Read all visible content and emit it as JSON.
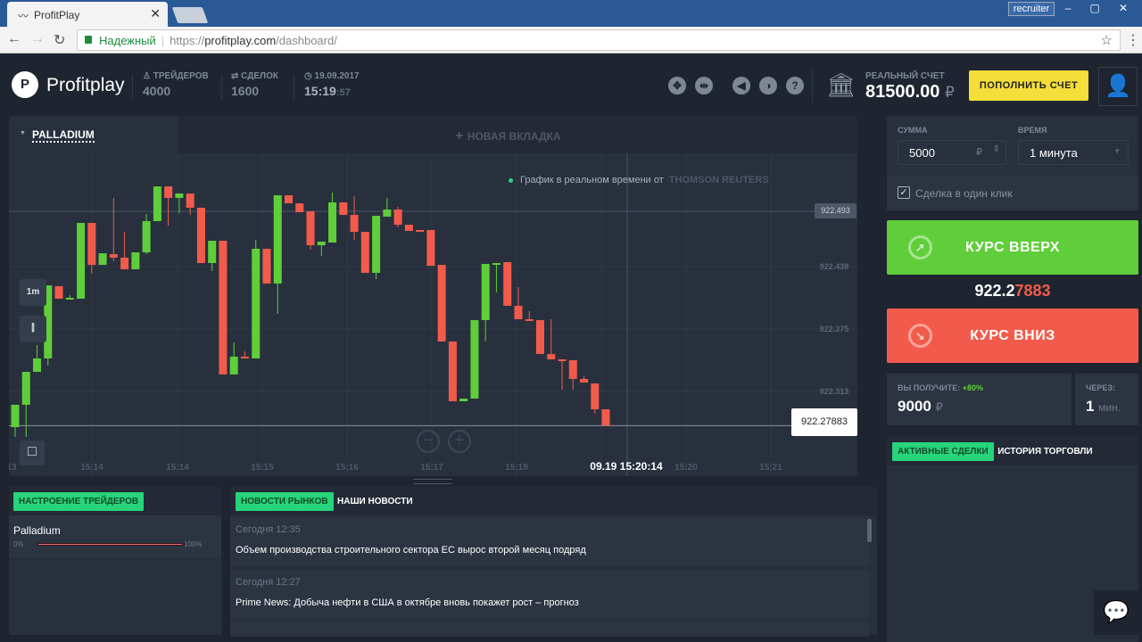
{
  "browser": {
    "tab_title": "ProfitPlay",
    "user": "recruiter",
    "secure_label": "Надежный",
    "url_scheme": "https://",
    "url_host": "profitplay.com",
    "url_path": "/dashboard/"
  },
  "header": {
    "logo": "Profitplay",
    "traders_label": "ТРЕЙДЕРОВ",
    "traders": "4000",
    "deals_label": "СДЕЛОК",
    "deals": "1600",
    "date": "19.09.2017",
    "time_hm": "15:19",
    "time_s": ":57",
    "account_label": "РЕАЛЬНЫЙ СЧЕТ",
    "balance": "81500.00",
    "currency": "₽",
    "deposit_button": "ПОПОЛНИТЬ СЧЕТ",
    "tool_icons": [
      "expand-icon",
      "split-icon",
      "sound-icon",
      "contrast-icon",
      "help-icon"
    ]
  },
  "chart_tabs": {
    "active": "PALLADIUM",
    "new": "НОВАЯ ВКЛАДКА"
  },
  "realtime": {
    "text": "График в реальном времени от",
    "provider": "THOMSON REUTERS"
  },
  "chart_data": {
    "type": "candlestick",
    "interval_label": "1m",
    "x_ticks": [
      "13",
      "15:14",
      "15:14",
      "15:15",
      "15:16",
      "15:17",
      "15:18",
      "15:20",
      "15:21"
    ],
    "y_ticks": [
      "922.438",
      "922.375",
      "922.313"
    ],
    "crosshair": {
      "price": "922.493",
      "time": "09.19 15:20:14"
    },
    "current_price": "922.27883",
    "colors": {
      "up": "#5fce3a",
      "down": "#f25b4b"
    },
    "candles_ohlc": [
      [
        922.2774,
        922.2997,
        922.2676,
        922.2997
      ],
      [
        922.2997,
        922.3326,
        922.2676,
        922.3326
      ],
      [
        922.3326,
        922.3594,
        922.3326,
        922.346
      ],
      [
        922.346,
        922.419,
        922.3389,
        922.419
      ],
      [
        922.4182,
        922.4182,
        922.4057,
        922.4057
      ],
      [
        922.4057,
        922.4092,
        922.4057,
        922.4066
      ],
      [
        922.4057,
        922.4814,
        922.4057,
        922.4814
      ],
      [
        922.4814,
        922.4814,
        922.4306,
        922.4395
      ],
      [
        922.4395,
        922.4511,
        922.4395,
        922.4511
      ],
      [
        922.4502,
        922.5064,
        922.4431,
        922.4467
      ],
      [
        922.4467,
        922.4725,
        922.4351,
        922.4351
      ],
      [
        922.4351,
        922.452,
        922.4351,
        922.452
      ],
      [
        922.452,
        922.4903,
        922.4502,
        922.4832
      ],
      [
        922.4832,
        922.5179,
        922.4832,
        922.5179
      ],
      [
        922.5179,
        922.5179,
        922.4787,
        922.5064
      ],
      [
        922.5064,
        922.5108,
        922.4912,
        922.5108
      ],
      [
        922.5108,
        922.5108,
        922.4894,
        922.4966
      ],
      [
        922.4966,
        922.4966,
        922.4413,
        922.4413
      ],
      [
        922.4413,
        922.4636,
        922.4333,
        922.4636
      ],
      [
        922.4636,
        922.4636,
        922.33,
        922.33
      ],
      [
        922.33,
        922.362,
        922.33,
        922.3478
      ],
      [
        922.3478,
        922.3531,
        922.346,
        922.346
      ],
      [
        922.346,
        922.4645,
        922.346,
        922.4556
      ],
      [
        922.4556,
        922.4556,
        922.4208,
        922.4208
      ],
      [
        922.4208,
        922.509,
        922.3905,
        922.509
      ],
      [
        922.509,
        922.509,
        922.501,
        922.501
      ],
      [
        922.501,
        922.501,
        922.4921,
        922.4921
      ],
      [
        922.493,
        922.493,
        922.4547,
        922.4591
      ],
      [
        922.4591,
        922.4627,
        922.4485,
        922.4627
      ],
      [
        922.4618,
        922.5117,
        922.4618,
        922.5019
      ],
      [
        922.5019,
        922.5019,
        922.4894,
        922.4894
      ],
      [
        922.4894,
        922.5081,
        922.4645,
        922.4725
      ],
      [
        922.4725,
        922.4725,
        922.4315,
        922.4315
      ],
      [
        922.4315,
        922.4885,
        922.4253,
        922.4885
      ],
      [
        922.4877,
        922.5064,
        922.4877,
        922.4948
      ],
      [
        922.4948,
        922.4975,
        922.477,
        922.4796
      ],
      [
        922.4796,
        922.4796,
        922.4734,
        922.4734
      ],
      [
        922.4743,
        922.4743,
        922.4734,
        922.4734
      ],
      [
        922.4743,
        922.4743,
        922.4386,
        922.4386
      ],
      [
        922.4395,
        922.4395,
        922.3629,
        922.3629
      ],
      [
        922.3629,
        922.3629,
        922.3032,
        922.3032
      ],
      [
        922.3032,
        922.3059,
        922.3032,
        922.3059
      ],
      [
        922.3059,
        922.3843,
        922.3059,
        922.3843
      ],
      [
        922.3843,
        922.4404,
        922.3629,
        922.4404
      ],
      [
        922.4404,
        922.4413,
        922.4119,
        922.4413
      ],
      [
        922.4422,
        922.4422,
        922.3986,
        922.3986
      ],
      [
        922.3986,
        922.4173,
        922.3852,
        922.3852
      ],
      [
        922.3852,
        922.3932,
        922.3843,
        922.3843
      ],
      [
        922.3843,
        922.3843,
        922.3504,
        922.3504
      ],
      [
        922.3504,
        922.3852,
        922.3451,
        922.3451
      ],
      [
        922.3451,
        922.3451,
        922.3148,
        922.3442
      ],
      [
        922.3442,
        922.3442,
        922.3148,
        922.3255
      ],
      [
        922.3255,
        922.3282,
        922.3219,
        922.3219
      ],
      [
        922.321,
        922.321,
        922.2907,
        922.2952
      ],
      [
        922.2952,
        922.2952,
        922.2788,
        922.2788
      ]
    ]
  },
  "sentiment": {
    "tab": "НАСТРОЕНИЕ ТРЕЙДЕРОВ",
    "asset": "Palladium",
    "min": "0%",
    "max": "100%"
  },
  "news": {
    "tab_active": "НОВОСТИ РЫНКОВ",
    "tab_other": "НАШИ НОВОСТИ",
    "items": [
      {
        "time": "Сегодня 12:35",
        "title": "Объем производства строительного сектора ЕС вырос второй месяц подряд"
      },
      {
        "time": "Сегодня 12:27",
        "title": "Prime News: Добыча нефти в США в октябре вновь покажет рост – прогноз"
      }
    ]
  },
  "trade": {
    "amount_label": "СУММА",
    "amount": "5000",
    "currency": "₽",
    "time_label": "ВРЕМЯ",
    "time": "1 минута",
    "one_click": "Сделка в один клик",
    "one_click_checked": true,
    "up": "КУРС ВВЕРХ",
    "down": "КУРС ВНИЗ",
    "price_main": "922.2",
    "price_tail": "7883",
    "payout_label": "ВЫ ПОЛУЧИТЕ:",
    "payout_pct": "+80%",
    "payout": "9000",
    "expiry_label": "ЧЕРЕЗ:",
    "expiry": "1",
    "expiry_unit": "мин.",
    "tab_active": "АКТИВНЫЕ СДЕЛКИ",
    "tab_other": "ИСТОРИЯ ТОРГОВЛИ"
  }
}
